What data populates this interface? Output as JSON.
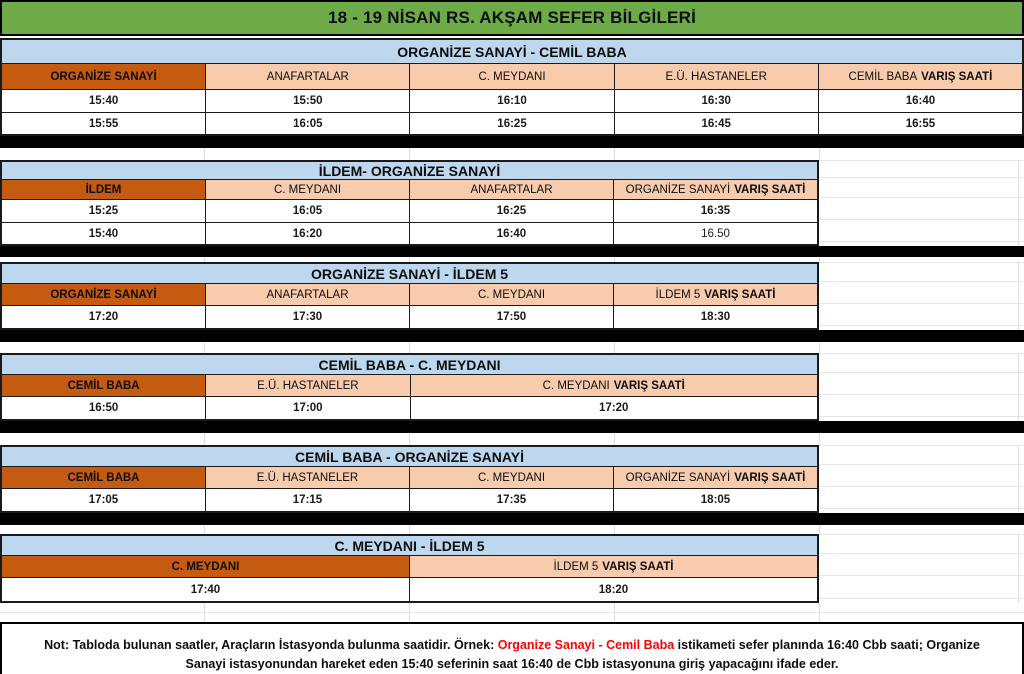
{
  "title": "18 - 19 NİSAN RS. AKŞAM SEFER BİLGİLERİ",
  "colors": {
    "title_bg": "#6CAB47",
    "route_header_bg": "#BDD7EE",
    "origin_cell_bg": "#C55A11",
    "stop_cell_bg": "#F8CBAD",
    "separator": "#000000",
    "note_highlight": "#FF0000"
  },
  "sections": [
    {
      "route": "ORGANİZE SANAYİ - CEMİL BABA",
      "columns": [
        {
          "label": "ORGANİZE SANAYİ",
          "origin": true,
          "span": 1
        },
        {
          "label": "ANAFARTALAR",
          "span": 1
        },
        {
          "label": "C. MEYDANI",
          "span": 1
        },
        {
          "label": "E.Ü. HASTANELER",
          "span": 1
        },
        {
          "label": "CEMİL BABA",
          "bold_suffix": "VARIŞ SAATİ",
          "span": 1
        }
      ],
      "rows": [
        [
          "15:40",
          "15:50",
          "16:10",
          "16:30",
          "16:40"
        ],
        [
          "15:55",
          "16:05",
          "16:25",
          "16:45",
          "16:55"
        ]
      ]
    },
    {
      "route": "İLDEM- ORGANİZE SANAYİ",
      "columns": [
        {
          "label": "İLDEM",
          "origin": true,
          "span": 1
        },
        {
          "label": "C. MEYDANI",
          "span": 1
        },
        {
          "label": "ANAFARTALAR",
          "span": 1
        },
        {
          "label": "ORGANİZE SANAYİ",
          "bold_suffix": "VARIŞ SAATİ",
          "span": 1
        }
      ],
      "rows": [
        [
          "15:25",
          "16:05",
          "16:25",
          "16:35"
        ],
        [
          "15:40",
          "16:20",
          "16:40",
          "16.50"
        ]
      ]
    },
    {
      "route": "ORGANİZE SANAYİ - İLDEM 5",
      "columns": [
        {
          "label": "ORGANİZE SANAYİ",
          "origin": true,
          "span": 1
        },
        {
          "label": "ANAFARTALAR",
          "span": 1
        },
        {
          "label": "C. MEYDANI",
          "span": 1
        },
        {
          "label": "İLDEM 5",
          "bold_suffix": "VARIŞ SAATİ",
          "span": 1
        }
      ],
      "rows": [
        [
          "17:20",
          "17:30",
          "17:50",
          "18:30"
        ]
      ]
    },
    {
      "route": "CEMİL BABA - C. MEYDANI",
      "columns": [
        {
          "label": "CEMİL BABA",
          "origin": true,
          "span": 1
        },
        {
          "label": "E.Ü. HASTANELER",
          "span": 1
        },
        {
          "label": "C. MEYDANI",
          "bold_suffix": "VARIŞ SAATİ",
          "span": 2
        }
      ],
      "rows": [
        [
          "16:50",
          "17:00",
          "17:20"
        ]
      ]
    },
    {
      "route": "CEMİL BABA - ORGANİZE SANAYİ",
      "columns": [
        {
          "label": "CEMİL BABA",
          "origin": true,
          "span": 1
        },
        {
          "label": "E.Ü. HASTANELER",
          "span": 1
        },
        {
          "label": "C. MEYDANI",
          "span": 1
        },
        {
          "label": "ORGANİZE SANAYİ",
          "bold_suffix": "VARIŞ SAATİ",
          "span": 1
        }
      ],
      "rows": [
        [
          "17:05",
          "17:15",
          "17:35",
          "18:05"
        ]
      ]
    },
    {
      "route": "C. MEYDANI  - İLDEM 5",
      "columns": [
        {
          "label": "C. MEYDANI",
          "origin": true,
          "span": 2
        },
        {
          "label": "İLDEM 5",
          "bold_suffix": "VARIŞ SAATİ",
          "span": 2
        }
      ],
      "rows": [
        [
          "17:40",
          "18:20"
        ]
      ]
    }
  ],
  "note": {
    "prefix": "Not: Tabloda bulunan saatler, Araçların İstasyonda bulunma saatidir. Örnek: ",
    "highlight": "Organize Sanayi - Cemil Baba",
    "suffix": " istikameti sefer planında 16:40 Cbb saati; Organize Sanayi istasyonundan hareket eden 15:40 seferinin saat 16:40 de Cbb istasyonuna giriş yapacağını ifade eder."
  }
}
